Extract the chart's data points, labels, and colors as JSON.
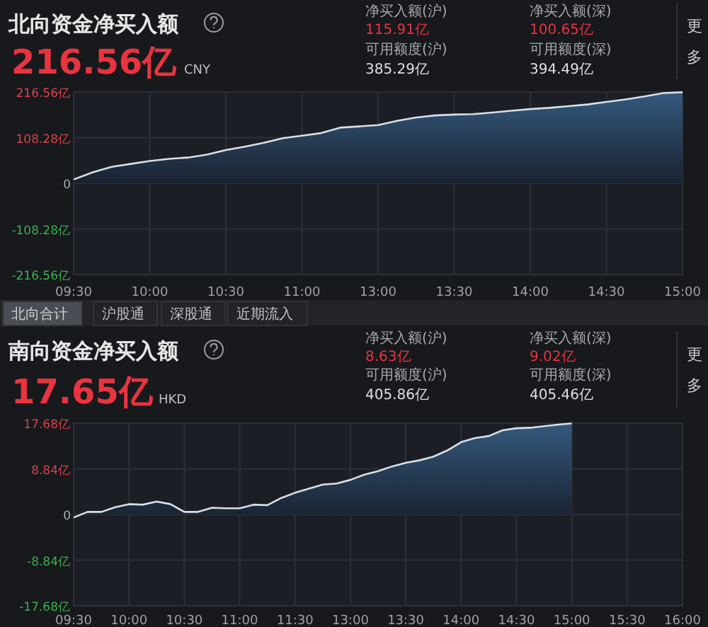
{
  "chart_data": [
    {
      "type": "area",
      "title": "北向资金净买入额",
      "annotations": [
        "216.56亿",
        "CNY",
        "净买入额(沪)",
        "115.91亿",
        "净买入额(深)",
        "100.65亿",
        "可用额度(沪)",
        "385.29亿",
        "可用额度(深)",
        "394.49亿",
        "更",
        "多"
      ],
      "categories": [
        "09:30",
        null,
        null,
        null,
        "10:00",
        null,
        null,
        null,
        "10:30",
        null,
        null,
        null,
        "11:00",
        null,
        null,
        null,
        "13:00",
        null,
        null,
        null,
        "13:30",
        null,
        null,
        null,
        "14:00",
        null,
        null,
        null,
        "14:30",
        null,
        null,
        null,
        "15:00"
      ],
      "series": [
        {
          "color": "#d8dfe6",
          "values": [
            9,
            26,
            39,
            46,
            53,
            58,
            61,
            68,
            79,
            87,
            96,
            107,
            113,
            119,
            132,
            135,
            138,
            148,
            156,
            161,
            163,
            164,
            168,
            172,
            176,
            179,
            183,
            187,
            193,
            199,
            206,
            214,
            216
          ]
        }
      ],
      "ylim": [
        -216.56,
        216.56
      ],
      "yticks": [
        {
          "value": 216.56,
          "label": "216.56亿"
        },
        {
          "value": 108.28,
          "label": "108.28亿"
        },
        0,
        {
          "value": -108.28,
          "label": "-108.28亿"
        },
        {
          "value": -216.56,
          "label": "-216.56亿"
        }
      ],
      "grid": true
    },
    {
      "type": "area",
      "title": "南向资金净买入额",
      "annotations": [
        "北向合计",
        "沪股通",
        "深股通",
        "近期流入",
        "17.65亿",
        "HKD",
        "净买入额(沪)",
        "8.63亿",
        "净买入额(深)",
        "9.02亿",
        "可用额度(沪)",
        "405.86亿",
        "可用额度(深)",
        "405.46亿",
        "更",
        "多"
      ],
      "categories": [
        "09:30",
        null,
        null,
        null,
        "10:00",
        null,
        null,
        null,
        "10:30",
        null,
        null,
        null,
        "11:00",
        null,
        null,
        null,
        "11:30",
        null,
        null,
        null,
        "13:00",
        null,
        null,
        null,
        "13:30",
        null,
        null,
        null,
        "14:00",
        null,
        null,
        null,
        "14:30",
        null,
        null,
        null,
        "15:00",
        null,
        null,
        null,
        "15:30",
        null,
        null,
        null,
        "16:00"
      ],
      "series": [
        {
          "color": "#d8dfe6",
          "values": [
            -0.6,
            0.5,
            0.5,
            1.4,
            2.0,
            1.9,
            2.5,
            2.0,
            0.5,
            0.5,
            1.3,
            1.2,
            1.2,
            1.9,
            1.8,
            3.2,
            4.2,
            5.0,
            5.8,
            6.0,
            6.7,
            7.7,
            8.4,
            9.3,
            10.0,
            10.5,
            11.2,
            12.4,
            14.0,
            14.8,
            15.2,
            16.3,
            16.7,
            16.8,
            17.1,
            17.4,
            17.65,
            null,
            null,
            null,
            null,
            null,
            null,
            null,
            null
          ]
        }
      ],
      "ylim": [
        -17.68,
        17.68
      ],
      "yticks": [
        {
          "value": 17.68,
          "label": "17.68亿"
        },
        {
          "value": 8.84,
          "label": "8.84亿"
        },
        0,
        {
          "value": -8.84,
          "label": "-8.84亿"
        },
        {
          "value": -17.68,
          "label": "-17.68亿"
        }
      ],
      "grid": true
    }
  ]
}
